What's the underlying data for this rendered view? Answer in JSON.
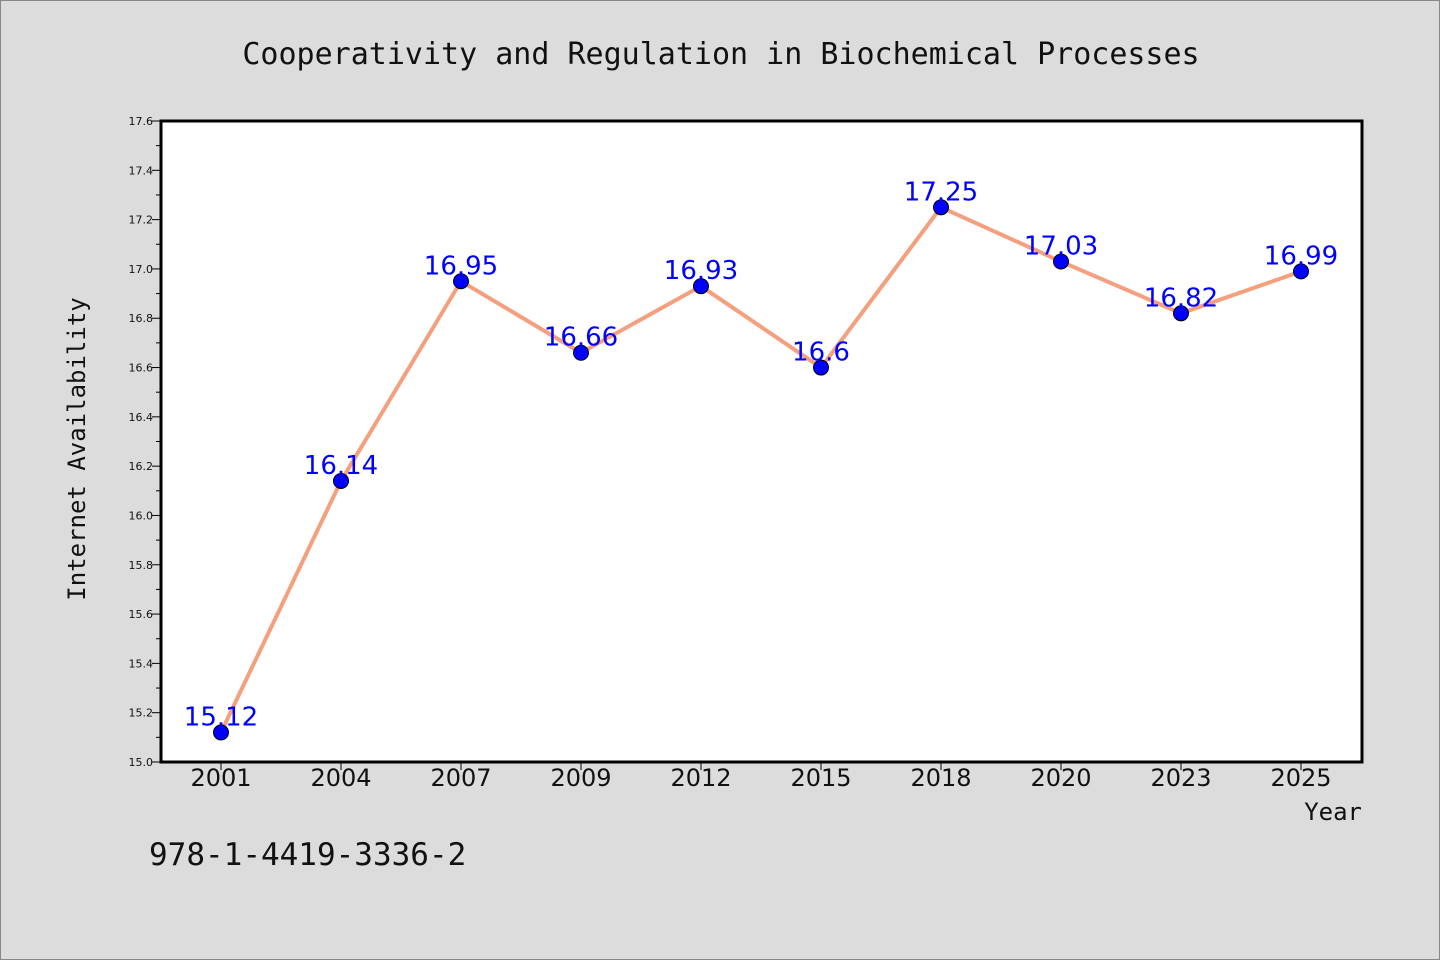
{
  "chart_data": {
    "type": "line",
    "title": "Cooperativity and Regulation in Biochemical Processes",
    "xlabel": "Year",
    "ylabel": "Internet Availability",
    "categories": [
      "2001",
      "2004",
      "2007",
      "2009",
      "2012",
      "2015",
      "2018",
      "2020",
      "2023",
      "2025"
    ],
    "values": [
      15.12,
      16.14,
      16.95,
      16.66,
      16.93,
      16.6,
      17.25,
      17.03,
      16.82,
      16.99
    ],
    "data_labels": [
      "15.12",
      "16.14",
      "16.95",
      "16.66",
      "16.93",
      "16.6",
      "17.25",
      "17.03",
      "16.82",
      "16.99"
    ],
    "ylim": [
      15.0,
      17.6
    ],
    "yticks": [
      "15.0",
      "15.2",
      "15.4",
      "15.6",
      "15.8",
      "16.0",
      "16.2",
      "16.4",
      "16.6",
      "16.8",
      "17.0",
      "17.2",
      "17.4",
      "17.6"
    ],
    "grid": false,
    "legend": "none",
    "line_color": "#f4a07e",
    "marker_color": "#0000ff",
    "label_color": "#0000ff"
  },
  "footer": {
    "isbn": "978-1-4419-3336-2"
  }
}
